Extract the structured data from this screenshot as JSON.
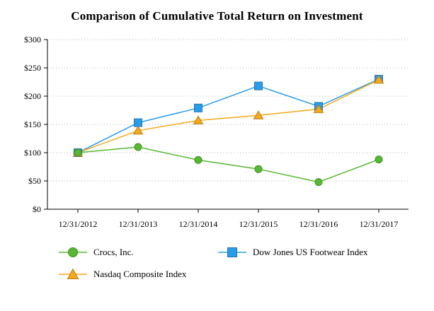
{
  "chart_data": {
    "type": "line",
    "title": "Comparison of Cumulative Total Return on Investment",
    "x": [
      "12/31/2012",
      "12/31/2013",
      "12/31/2014",
      "12/31/2015",
      "12/31/2016",
      "12/31/2017"
    ],
    "series": [
      {
        "name": "Crocs, Inc.",
        "marker": "circle",
        "color": "#56B931",
        "values": [
          100,
          110,
          87,
          71,
          48,
          88
        ]
      },
      {
        "name": "Dow Jones US Footwear Index",
        "marker": "square",
        "color": "#2B9CE8",
        "values": [
          100,
          153,
          179,
          218,
          182,
          230
        ]
      },
      {
        "name": "Nasdaq Composite Index",
        "marker": "triangle",
        "color": "#F5A81C",
        "values": [
          100,
          139,
          157,
          166,
          177,
          229
        ]
      }
    ],
    "ylim": [
      0,
      300
    ],
    "ytick_step": 50,
    "ytick_labels": [
      "$0",
      "$50",
      "$100",
      "$150",
      "$200",
      "$250",
      "$300"
    ],
    "xlabel": "",
    "ylabel": "",
    "grid": "horizontal-dotted",
    "legend_position": "bottom"
  }
}
